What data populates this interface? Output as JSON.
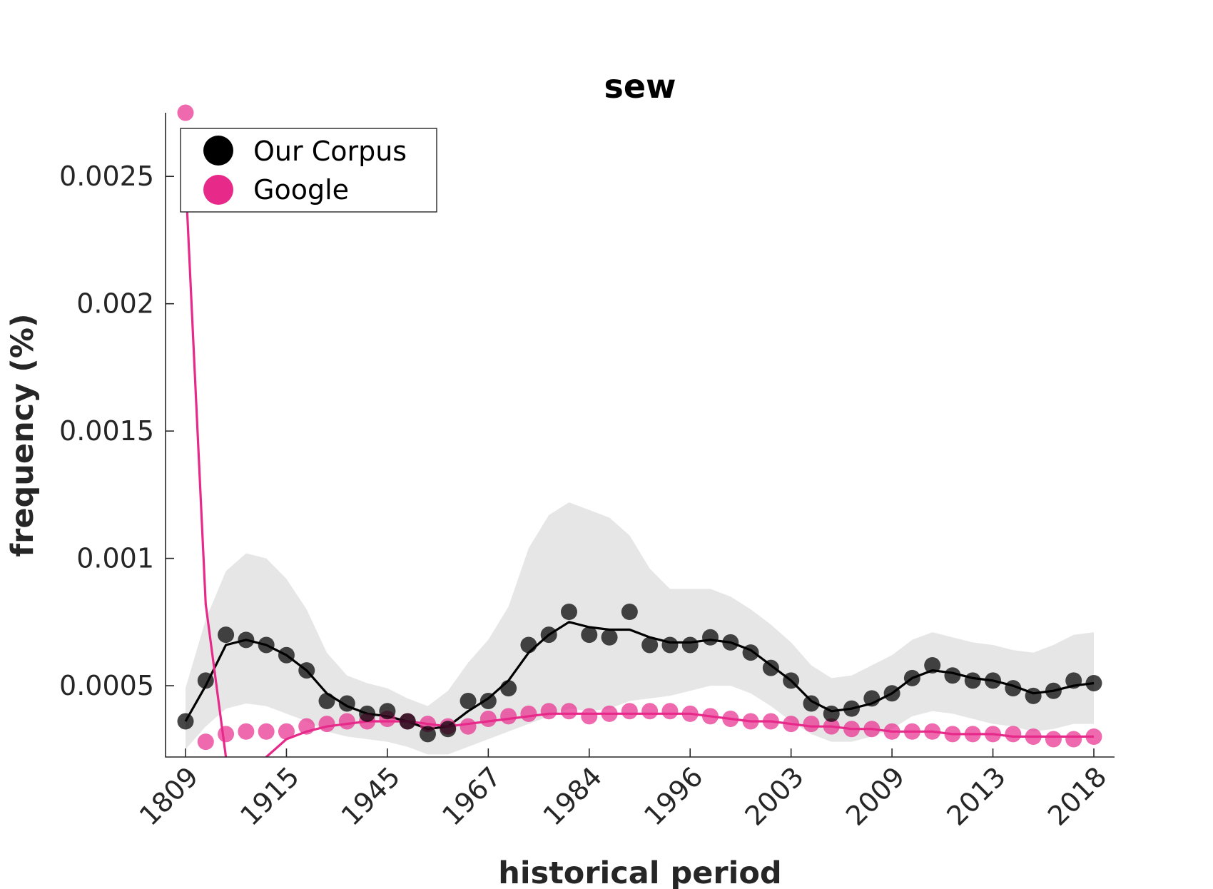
{
  "chart_data": {
    "type": "line",
    "title": "sew",
    "xlabel": "historical period",
    "ylabel": "frequency (%)",
    "x_tick_labels": [
      "1809",
      "1915",
      "1945",
      "1967",
      "1984",
      "1996",
      "2003",
      "2009",
      "2013",
      "2018"
    ],
    "y_ticks": [
      0.0005,
      0.001,
      0.0015,
      0.002,
      0.0025
    ],
    "y_tick_labels": [
      "0.0005",
      "0.001",
      "0.0015",
      "0.002",
      "0.0025"
    ],
    "ylim": [
      0.00022,
      0.00275
    ],
    "legend": {
      "placement": "top-left",
      "entries": [
        {
          "label": "Our Corpus",
          "color": "#000000"
        },
        {
          "label": "Google",
          "color": "#e7298a"
        }
      ]
    },
    "series": [
      {
        "name": "Our Corpus",
        "color": "#000000",
        "points": [
          0.00036,
          0.00052,
          0.0007,
          0.00068,
          0.00066,
          0.00062,
          0.00056,
          0.00044,
          0.00043,
          0.00039,
          0.0004,
          0.00036,
          0.00031,
          0.00033,
          0.00044,
          0.00044,
          0.00049,
          0.00066,
          0.0007,
          0.00079,
          0.0007,
          0.00069,
          0.00079,
          0.00066,
          0.00066,
          0.00066,
          0.00069,
          0.00067,
          0.00063,
          0.00057,
          0.00052,
          0.00043,
          0.00039,
          0.00041,
          0.00045,
          0.00047,
          0.00053,
          0.00058,
          0.00054,
          0.00052,
          0.00052,
          0.00049,
          0.00046,
          0.00048,
          0.00052,
          0.00051
        ],
        "smoothed": [
          0.00036,
          0.0005,
          0.00066,
          0.00068,
          0.00066,
          0.00062,
          0.00056,
          0.00047,
          0.00042,
          0.00039,
          0.00038,
          0.00036,
          0.00033,
          0.00034,
          0.0004,
          0.00045,
          0.00052,
          0.00063,
          0.0007,
          0.00075,
          0.00073,
          0.00072,
          0.00072,
          0.00069,
          0.00067,
          0.00067,
          0.00068,
          0.00067,
          0.00064,
          0.00058,
          0.00052,
          0.00044,
          0.0004,
          0.00041,
          0.00043,
          0.00047,
          0.00053,
          0.00056,
          0.00055,
          0.00053,
          0.00052,
          0.0005,
          0.00047,
          0.00048,
          0.0005,
          0.00051
        ],
        "band_upper": [
          0.00049,
          0.00076,
          0.00095,
          0.00102,
          0.001,
          0.00092,
          0.0008,
          0.00063,
          0.00054,
          0.00051,
          0.00049,
          0.00045,
          0.00042,
          0.00048,
          0.00059,
          0.00068,
          0.00081,
          0.00104,
          0.00117,
          0.00122,
          0.00119,
          0.00116,
          0.00109,
          0.00096,
          0.00088,
          0.00088,
          0.00088,
          0.00085,
          0.0008,
          0.00074,
          0.00067,
          0.00058,
          0.00053,
          0.00054,
          0.00058,
          0.00062,
          0.00068,
          0.00071,
          0.00069,
          0.00067,
          0.00066,
          0.00064,
          0.00063,
          0.00066,
          0.0007,
          0.00071
        ],
        "band_lower": [
          0.00025,
          0.00034,
          0.00041,
          0.00043,
          0.00042,
          0.00039,
          0.00036,
          0.00032,
          0.0003,
          0.00029,
          0.00028,
          0.00026,
          0.00023,
          0.00023,
          0.00026,
          0.00029,
          0.00032,
          0.00035,
          0.00038,
          0.00041,
          0.0004,
          0.00041,
          0.00044,
          0.00045,
          0.00046,
          0.00048,
          0.0005,
          0.0005,
          0.00047,
          0.00042,
          0.00036,
          0.00031,
          0.00028,
          0.00028,
          0.0003,
          0.00033,
          0.00038,
          0.0004,
          0.00039,
          0.00037,
          0.00035,
          0.00034,
          0.00032,
          0.00033,
          0.00035,
          0.00035
        ]
      },
      {
        "name": "Google",
        "color": "#e7298a",
        "points": [
          0.00275,
          0.00028,
          0.00031,
          0.00032,
          0.00032,
          0.00032,
          0.00034,
          0.00035,
          0.00036,
          0.00036,
          0.00037,
          0.00036,
          0.00035,
          0.00034,
          0.00034,
          0.00037,
          0.00038,
          0.00039,
          0.0004,
          0.0004,
          0.00038,
          0.00039,
          0.0004,
          0.0004,
          0.0004,
          0.00039,
          0.00038,
          0.00037,
          0.00036,
          0.00036,
          0.00035,
          0.00035,
          0.00034,
          0.00033,
          0.00033,
          0.00032,
          0.00032,
          0.00032,
          0.00031,
          0.00031,
          0.00031,
          0.00031,
          0.0003,
          0.00029,
          0.00029,
          0.0003
        ],
        "smoothed": [
          0.0025,
          0.00082,
          0.00022,
          0.00012,
          0.00022,
          0.00029,
          0.00032,
          0.00034,
          0.00035,
          0.00036,
          0.00036,
          0.00036,
          0.00035,
          0.00034,
          0.00035,
          0.00036,
          0.00037,
          0.00038,
          0.00039,
          0.00039,
          0.00039,
          0.00039,
          0.00039,
          0.00039,
          0.00039,
          0.00039,
          0.00038,
          0.00037,
          0.00036,
          0.00036,
          0.00035,
          0.00034,
          0.00034,
          0.00033,
          0.00033,
          0.00032,
          0.00032,
          0.00032,
          0.00031,
          0.00031,
          0.00031,
          0.0003,
          0.0003,
          0.0003,
          0.0003,
          0.0003
        ]
      }
    ]
  }
}
